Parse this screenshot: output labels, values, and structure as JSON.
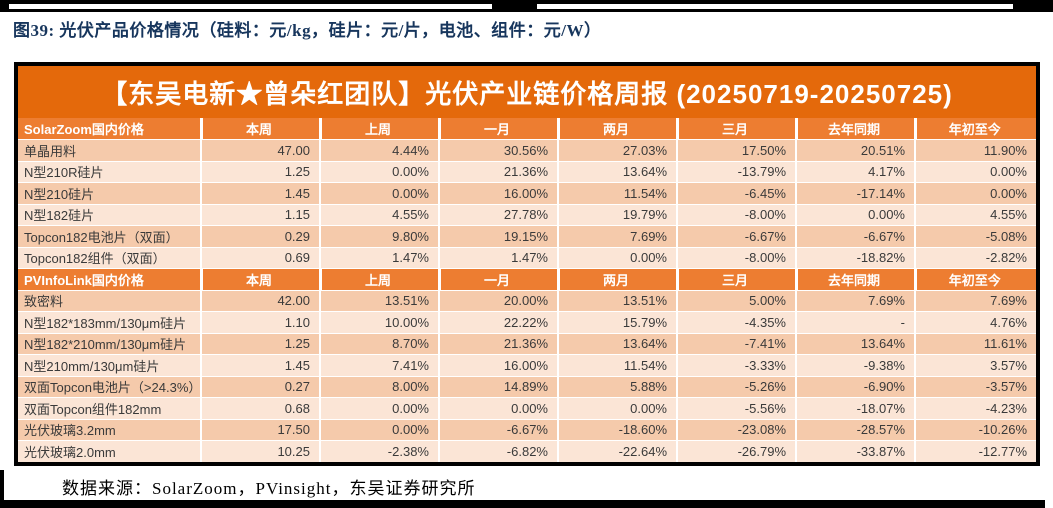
{
  "figure_title": "图39:  光伏产品价格情况（硅料：元/kg，硅片：元/片，电池、组件：元/W）",
  "banner_title": "【东吴电新★曾朵红团队】光伏产业链价格周报 (20250719-20250725)",
  "footer_note": "数据来源：SolarZoom，PVinsight，东吴证券研究所",
  "colors": {
    "banner_orange": "#e4690b",
    "header_orange": "#ed7d31",
    "row_dark": "#f5caab",
    "row_light": "#fbe5d6",
    "title_navy": "#17365d",
    "frame_black": "#000000"
  },
  "table": {
    "columns": [
      "本周",
      "上周",
      "一月",
      "两月",
      "三月",
      "去年同期",
      "年初至今"
    ],
    "sections": [
      {
        "name": "SolarZoom国内价格",
        "rows": [
          {
            "label": "单晶用料",
            "values": [
              "47.00",
              "4.44%",
              "30.56%",
              "27.03%",
              "17.50%",
              "20.51%",
              "11.90%"
            ]
          },
          {
            "label": "N型210R硅片",
            "values": [
              "1.25",
              "0.00%",
              "21.36%",
              "13.64%",
              "-13.79%",
              "4.17%",
              "0.00%"
            ]
          },
          {
            "label": "N型210硅片",
            "values": [
              "1.45",
              "0.00%",
              "16.00%",
              "11.54%",
              "-6.45%",
              "-17.14%",
              "0.00%"
            ]
          },
          {
            "label": "N型182硅片",
            "values": [
              "1.15",
              "4.55%",
              "27.78%",
              "19.79%",
              "-8.00%",
              "0.00%",
              "4.55%"
            ]
          },
          {
            "label": "Topcon182电池片（双面）",
            "values": [
              "0.29",
              "9.80%",
              "19.15%",
              "7.69%",
              "-6.67%",
              "-6.67%",
              "-5.08%"
            ]
          },
          {
            "label": "Topcon182组件（双面）",
            "values": [
              "0.69",
              "1.47%",
              "1.47%",
              "0.00%",
              "-8.00%",
              "-18.82%",
              "-2.82%"
            ]
          }
        ]
      },
      {
        "name": "PVInfoLink国内价格",
        "rows": [
          {
            "label": "致密料",
            "values": [
              "42.00",
              "13.51%",
              "20.00%",
              "13.51%",
              "5.00%",
              "7.69%",
              "7.69%"
            ]
          },
          {
            "label": "N型182*183mm/130μm硅片",
            "values": [
              "1.10",
              "10.00%",
              "22.22%",
              "15.79%",
              "-4.35%",
              "-",
              "4.76%"
            ]
          },
          {
            "label": "N型182*210mm/130μm硅片",
            "values": [
              "1.25",
              "8.70%",
              "21.36%",
              "13.64%",
              "-7.41%",
              "13.64%",
              "11.61%"
            ]
          },
          {
            "label": "N型210mm/130μm硅片",
            "values": [
              "1.45",
              "7.41%",
              "16.00%",
              "11.54%",
              "-3.33%",
              "-9.38%",
              "3.57%"
            ]
          },
          {
            "label": "双面Topcon电池片（>24.3%）",
            "values": [
              "0.27",
              "8.00%",
              "14.89%",
              "5.88%",
              "-5.26%",
              "-6.90%",
              "-3.57%"
            ]
          },
          {
            "label": "双面Topcon组件182mm",
            "values": [
              "0.68",
              "0.00%",
              "0.00%",
              "0.00%",
              "-5.56%",
              "-18.07%",
              "-4.23%"
            ]
          },
          {
            "label": "光伏玻璃3.2mm",
            "values": [
              "17.50",
              "0.00%",
              "-6.67%",
              "-18.60%",
              "-23.08%",
              "-28.57%",
              "-10.26%"
            ]
          },
          {
            "label": "光伏玻璃2.0mm",
            "values": [
              "10.25",
              "-2.38%",
              "-6.82%",
              "-22.64%",
              "-26.79%",
              "-33.87%",
              "-12.77%"
            ]
          }
        ]
      }
    ]
  }
}
